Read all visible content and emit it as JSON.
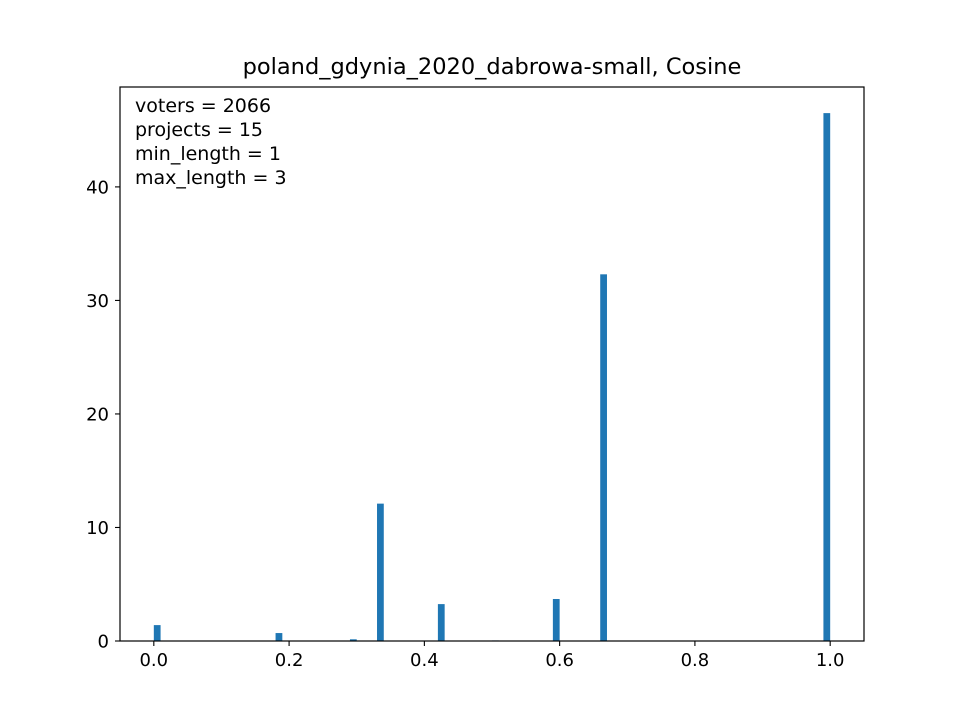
{
  "chart_data": {
    "type": "bar",
    "title": "poland_gdynia_2020_dabrowa-small, Cosine",
    "xlabel": "",
    "ylabel": "",
    "xlim": [
      -0.05,
      1.05
    ],
    "ylim": [
      0,
      48.8
    ],
    "bin_width": 0.01,
    "x": [
      0.0,
      0.18,
      0.29,
      0.33,
      0.42,
      0.5,
      0.59,
      0.66,
      0.99
    ],
    "values": [
      1.4,
      0.7,
      0.15,
      12.1,
      3.25,
      0.05,
      3.7,
      32.3,
      46.5
    ],
    "bar_color": "#1f77b4",
    "x_ticks": [
      "0.0",
      "0.2",
      "0.4",
      "0.6",
      "0.8",
      "1.0"
    ],
    "y_ticks": [
      "0",
      "10",
      "20",
      "30",
      "40"
    ],
    "annotations": [
      "voters = 2066",
      "projects = 15",
      "min_length = 1",
      "max_length = 3"
    ]
  }
}
